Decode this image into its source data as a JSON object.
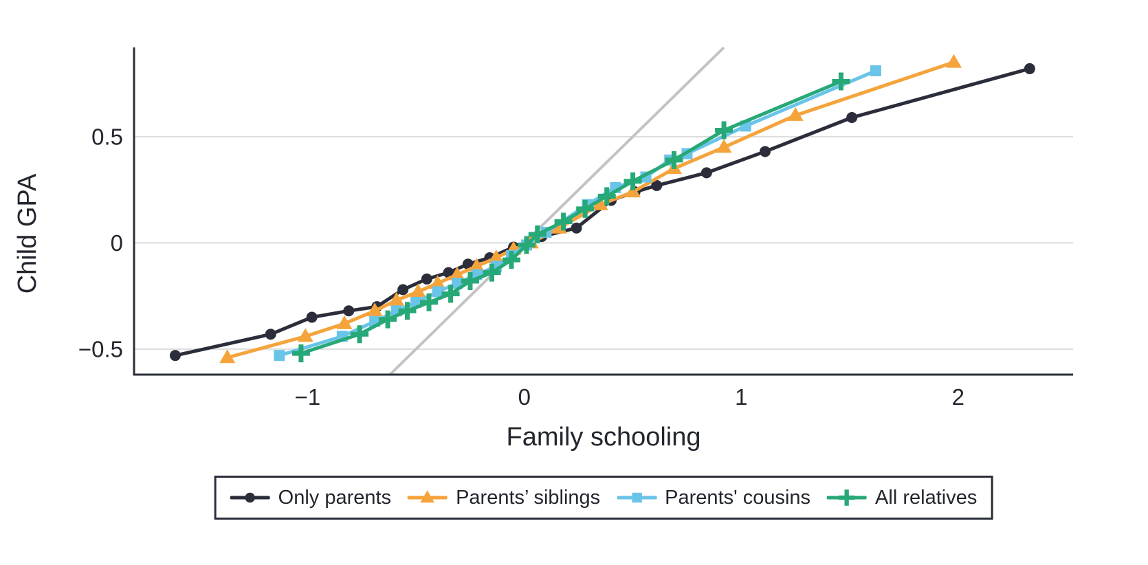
{
  "page": {
    "background": "#ffffff"
  },
  "chart_data": {
    "type": "line",
    "title": "",
    "xlabel": "Family schooling",
    "ylabel": "Child GPA",
    "xlim": [
      -1.8,
      2.53
    ],
    "ylim": [
      -0.62,
      0.92
    ],
    "grid": "horizontal",
    "legend_position": "bottom-outside",
    "x_ticks": [
      {
        "value": -1,
        "label": "−1"
      },
      {
        "value": 0,
        "label": "0"
      },
      {
        "value": 1,
        "label": "1"
      },
      {
        "value": 2,
        "label": "2"
      }
    ],
    "y_ticks": [
      {
        "value": 0.5,
        "label": "0.5"
      },
      {
        "value": 0,
        "label": "0"
      },
      {
        "value": -0.5,
        "label": "−0.5"
      }
    ],
    "reference_line": {
      "description": "45-degree line y = x",
      "slope": 1,
      "intercept": 0,
      "x_start": -0.62,
      "x_end": 0.92,
      "color": "#c3c3c3"
    },
    "colors": {
      "axis": "#2b2e3a",
      "gridline": "#dcdcdc",
      "text": "#23262e"
    },
    "series": [
      {
        "name": "Only parents",
        "color": "#2b2e3a",
        "marker": "circle",
        "points": [
          [
            -1.61,
            -0.53
          ],
          [
            -1.17,
            -0.43
          ],
          [
            -0.98,
            -0.35
          ],
          [
            -0.81,
            -0.32
          ],
          [
            -0.68,
            -0.3
          ],
          [
            -0.56,
            -0.22
          ],
          [
            -0.45,
            -0.17
          ],
          [
            -0.35,
            -0.14
          ],
          [
            -0.26,
            -0.1
          ],
          [
            -0.16,
            -0.07
          ],
          [
            -0.05,
            -0.02
          ],
          [
            0.08,
            0.03
          ],
          [
            0.24,
            0.07
          ],
          [
            0.4,
            0.2
          ],
          [
            0.51,
            0.24
          ],
          [
            0.61,
            0.27
          ],
          [
            0.84,
            0.33
          ],
          [
            1.11,
            0.43
          ],
          [
            1.51,
            0.59
          ],
          [
            2.33,
            0.82
          ]
        ]
      },
      {
        "name": "Parents’ siblings",
        "color": "#f5a43c",
        "marker": "triangle",
        "points": [
          [
            -1.37,
            -0.54
          ],
          [
            -1.01,
            -0.44
          ],
          [
            -0.83,
            -0.38
          ],
          [
            -0.69,
            -0.32
          ],
          [
            -0.59,
            -0.27
          ],
          [
            -0.49,
            -0.23
          ],
          [
            -0.4,
            -0.19
          ],
          [
            -0.31,
            -0.15
          ],
          [
            -0.22,
            -0.11
          ],
          [
            -0.13,
            -0.07
          ],
          [
            -0.05,
            -0.03
          ],
          [
            0.03,
            0.0
          ],
          [
            0.16,
            0.07
          ],
          [
            0.35,
            0.18
          ],
          [
            0.5,
            0.24
          ],
          [
            0.69,
            0.35
          ],
          [
            0.92,
            0.45
          ],
          [
            1.25,
            0.6
          ],
          [
            1.98,
            0.85
          ]
        ]
      },
      {
        "name": "Parents' cousins",
        "color": "#6ac4e8",
        "marker": "square",
        "points": [
          [
            -1.13,
            -0.53
          ],
          [
            -0.84,
            -0.44
          ],
          [
            -0.69,
            -0.37
          ],
          [
            -0.59,
            -0.32
          ],
          [
            -0.5,
            -0.28
          ],
          [
            -0.4,
            -0.23
          ],
          [
            -0.31,
            -0.19
          ],
          [
            -0.22,
            -0.15
          ],
          [
            -0.13,
            -0.11
          ],
          [
            -0.06,
            -0.06
          ],
          [
            0.01,
            -0.01
          ],
          [
            0.1,
            0.05
          ],
          [
            0.29,
            0.18
          ],
          [
            0.42,
            0.26
          ],
          [
            0.56,
            0.31
          ],
          [
            0.67,
            0.39
          ],
          [
            0.75,
            0.42
          ],
          [
            1.02,
            0.55
          ],
          [
            1.62,
            0.81
          ]
        ]
      },
      {
        "name": "All relatives",
        "color": "#27a877",
        "marker": "plus",
        "points": [
          [
            -1.03,
            -0.52
          ],
          [
            -0.76,
            -0.43
          ],
          [
            -0.63,
            -0.36
          ],
          [
            -0.54,
            -0.32
          ],
          [
            -0.44,
            -0.28
          ],
          [
            -0.34,
            -0.24
          ],
          [
            -0.25,
            -0.18
          ],
          [
            -0.15,
            -0.14
          ],
          [
            -0.06,
            -0.08
          ],
          [
            0.01,
            -0.01
          ],
          [
            0.06,
            0.04
          ],
          [
            0.18,
            0.1
          ],
          [
            0.28,
            0.16
          ],
          [
            0.38,
            0.22
          ],
          [
            0.5,
            0.29
          ],
          [
            0.69,
            0.39
          ],
          [
            0.92,
            0.53
          ],
          [
            1.46,
            0.76
          ]
        ]
      }
    ]
  }
}
